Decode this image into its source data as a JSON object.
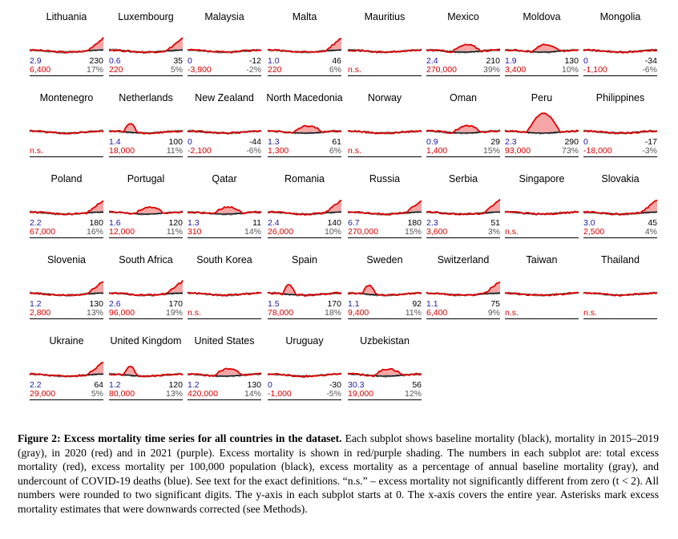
{
  "colors": {
    "current": "#e00000",
    "baseline": "#000000",
    "history": "#a0a0a0",
    "fill": "#f6a6a6",
    "fill2021": "#c35cc3",
    "undercount": "#1a1aaa",
    "total": "#d00000"
  },
  "panels": [
    {
      "country": "Lithuania",
      "under": "2.9",
      "per": "230",
      "total": "6,400",
      "pct": "17%",
      "shape": "late"
    },
    {
      "country": "Luxembourg",
      "under": "0.6",
      "per": "35",
      "total": "220",
      "pct": "5%",
      "shape": "late"
    },
    {
      "country": "Malaysia",
      "under": "0",
      "per": "-12",
      "total": "-3,900",
      "pct": "-2%",
      "shape": "flat"
    },
    {
      "country": "Malta",
      "under": "1.0",
      "per": "46",
      "total": "220",
      "pct": "6%",
      "shape": "late"
    },
    {
      "country": "Mauritius",
      "under": "",
      "per": "",
      "total": "n.s.",
      "pct": "",
      "shape": "flat"
    },
    {
      "country": "Mexico",
      "under": "2.4",
      "per": "210",
      "total": "270,000",
      "pct": "39%",
      "shape": "mid"
    },
    {
      "country": "Moldova",
      "under": "1.9",
      "per": "130",
      "total": "3,400",
      "pct": "10%",
      "shape": "mid"
    },
    {
      "country": "Mongolia",
      "under": "0",
      "per": "-34",
      "total": "-1,100",
      "pct": "-6%",
      "shape": "flat"
    },
    {
      "country": "Montenegro",
      "under": "",
      "per": "",
      "total": "n.s.",
      "pct": "",
      "shape": "flat"
    },
    {
      "country": "Netherlands",
      "under": "1.4",
      "per": "100",
      "total": "18,000",
      "pct": "11%",
      "shape": "early"
    },
    {
      "country": "New Zealand",
      "under": "0",
      "per": "-44",
      "total": "-2,100",
      "pct": "-6%",
      "shape": "flat"
    },
    {
      "country": "North Macedonia",
      "under": "1.3",
      "per": "61",
      "total": "1,300",
      "pct": "6%",
      "shape": "mid"
    },
    {
      "country": "Norway",
      "under": "",
      "per": "",
      "total": "n.s.",
      "pct": "",
      "shape": "flat"
    },
    {
      "country": "Oman",
      "under": "0.9",
      "per": "29",
      "total": "1,400",
      "pct": "15%",
      "shape": "mid"
    },
    {
      "country": "Peru",
      "under": "2.3",
      "per": "290",
      "total": "93,000",
      "pct": "73%",
      "shape": "peak"
    },
    {
      "country": "Philippines",
      "under": "0",
      "per": "-17",
      "total": "-18,000",
      "pct": "-3%",
      "shape": "flat"
    },
    {
      "country": "Poland",
      "under": "2.2",
      "per": "180",
      "total": "67,000",
      "pct": "16%",
      "shape": "late"
    },
    {
      "country": "Portugal",
      "under": "1.6",
      "per": "120",
      "total": "12,000",
      "pct": "11%",
      "shape": "mid"
    },
    {
      "country": "Qatar",
      "under": "1.3",
      "per": "11",
      "total": "310",
      "pct": "14%",
      "shape": "mid"
    },
    {
      "country": "Romania",
      "under": "2.4",
      "per": "140",
      "total": "26,000",
      "pct": "10%",
      "shape": "late"
    },
    {
      "country": "Russia",
      "under": "6.7",
      "per": "180",
      "total": "270,000",
      "pct": "15%",
      "shape": "late"
    },
    {
      "country": "Serbia",
      "under": "2.3",
      "per": "51",
      "total": "3,600",
      "pct": "3%",
      "shape": "late"
    },
    {
      "country": "Singapore",
      "under": "",
      "per": "",
      "total": "n.s.",
      "pct": "",
      "shape": "flat"
    },
    {
      "country": "Slovakia",
      "under": "3.0",
      "per": "45",
      "total": "2,500",
      "pct": "4%",
      "shape": "late"
    },
    {
      "country": "Slovenia",
      "under": "1.2",
      "per": "130",
      "total": "2,800",
      "pct": "13%",
      "shape": "late"
    },
    {
      "country": "South Africa",
      "under": "2.6",
      "per": "170",
      "total": "96,000",
      "pct": "19%",
      "shape": "late"
    },
    {
      "country": "South Korea",
      "under": "",
      "per": "",
      "total": "n.s.",
      "pct": "",
      "shape": "flat"
    },
    {
      "country": "Spain",
      "under": "1.5",
      "per": "170",
      "total": "78,000",
      "pct": "18%",
      "shape": "early"
    },
    {
      "country": "Sweden",
      "under": "1.1",
      "per": "92",
      "total": "9,400",
      "pct": "11%",
      "shape": "early"
    },
    {
      "country": "Switzerland",
      "under": "1.1",
      "per": "75",
      "total": "6,400",
      "pct": "9%",
      "shape": "late"
    },
    {
      "country": "Taiwan",
      "under": "",
      "per": "",
      "total": "n.s.",
      "pct": "",
      "shape": "flat"
    },
    {
      "country": "Thailand",
      "under": "",
      "per": "",
      "total": "n.s.",
      "pct": "",
      "shape": "flat"
    },
    {
      "country": "Ukraine",
      "under": "2.2",
      "per": "64",
      "total": "29,000",
      "pct": "5%",
      "shape": "late"
    },
    {
      "country": "United Kingdom",
      "under": "1.2",
      "per": "120",
      "total": "80,000",
      "pct": "13%",
      "shape": "early"
    },
    {
      "country": "United States",
      "under": "1.2",
      "per": "130",
      "total": "420,000",
      "pct": "14%",
      "shape": "mid"
    },
    {
      "country": "Uruguay",
      "under": "0",
      "per": "-30",
      "total": "-1,000",
      "pct": "-5%",
      "shape": "flat"
    },
    {
      "country": "Uzbekistan",
      "under": "30.3",
      "per": "56",
      "total": "19,000",
      "pct": "12%",
      "shape": "mid"
    }
  ],
  "caption": {
    "label": "Figure 2: Excess mortality time series for all countries in the dataset.",
    "text": " Each subplot shows baseline mortality (black), mortality in 2015–2019 (gray), in 2020 (red) and in 2021 (purple). Excess mortality is shown in red/purple shading. The numbers in each subplot are: total excess mortality (red), excess mortality per 100,000 population (black), excess mortality as a percentage of annual baseline mortality (gray), and undercount of COVID-19 deaths (blue). See text for the exact definitions. “n.s.” – excess mortality not significantly different from zero (t < 2). All numbers were rounded to two significant digits. The y-axis in each subplot starts at 0. The x-axis covers the entire year. Asterisks mark excess mortality estimates that were downwards corrected (see Methods)."
  }
}
